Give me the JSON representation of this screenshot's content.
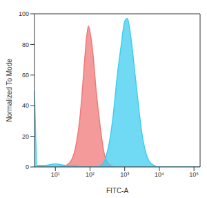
{
  "chart_data": {
    "type": "area",
    "x_label": "FITC-A",
    "y_label": "Normalized To Mode",
    "log": "x",
    "grid": false,
    "x": [
      2.5,
      3,
      5,
      10,
      20,
      30,
      40,
      50,
      60,
      70,
      80,
      90,
      100,
      120,
      150,
      200,
      250,
      300,
      400,
      500,
      600,
      800,
      1000,
      1200,
      1500,
      2000,
      2500,
      3000,
      4000,
      5000,
      7000,
      10000,
      150000
    ],
    "series": [
      {
        "color": "#f07878",
        "values": [
          0,
          0,
          0,
          0,
          1,
          5,
          15,
          30,
          50,
          70,
          85,
          92,
          88,
          75,
          50,
          25,
          10,
          4,
          1,
          0,
          0,
          0,
          0,
          0,
          0,
          0,
          0,
          0,
          0,
          0,
          0,
          0,
          0
        ]
      },
      {
        "color": "#40cdf0",
        "values": [
          50,
          1,
          1,
          2,
          1,
          1,
          1,
          0,
          0,
          0,
          0,
          0,
          0,
          0,
          0,
          1,
          3,
          8,
          22,
          40,
          58,
          80,
          95,
          97,
          85,
          60,
          40,
          25,
          10,
          4,
          1,
          0,
          0
        ]
      }
    ],
    "xlim": [
      2.5,
      150000
    ],
    "xticks": [
      {
        "value": 10,
        "label": "10¹"
      },
      {
        "value": 100,
        "label": "10²"
      },
      {
        "value": 1000,
        "label": "10³"
      },
      {
        "value": 10000,
        "label": "10⁴"
      },
      {
        "value": 100000,
        "label": "10⁵"
      }
    ],
    "ylim": [
      0,
      100
    ],
    "yticks": [
      0,
      20,
      40,
      60,
      80,
      100
    ]
  }
}
